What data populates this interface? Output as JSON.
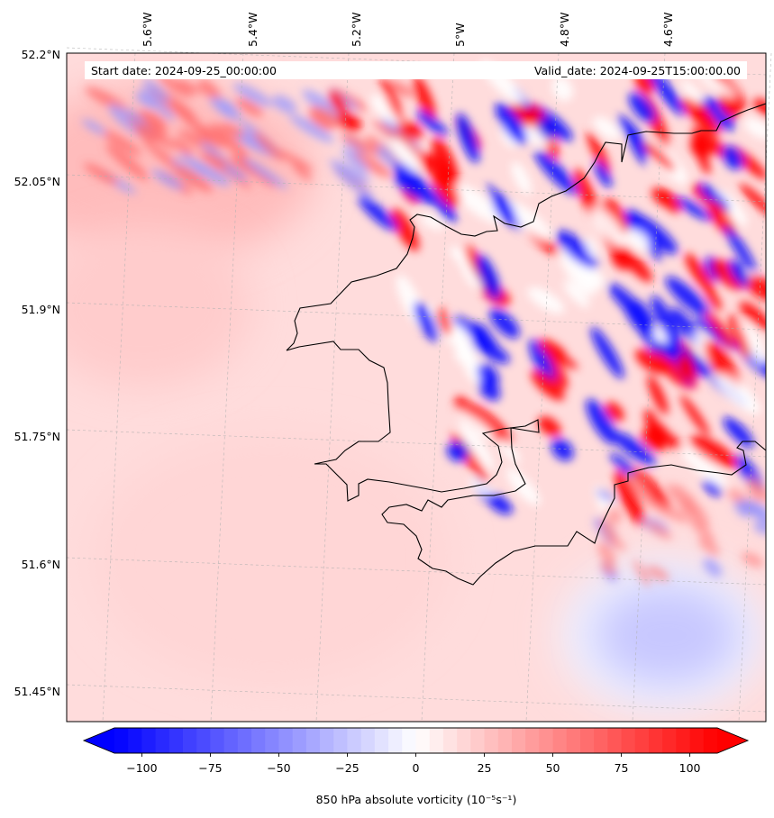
{
  "map": {
    "projection": "regional lat-lon, slightly rotated",
    "region": "South-west Wales / Pembrokeshire",
    "start_date": "Start date: 2024-09-25_00:00:00",
    "valid_date": "Valid_date: 2024-09-25T15:00:00.00",
    "lon_labels": [
      "5.6°W",
      "5.4°W",
      "5.2°W",
      "5°W",
      "4.8°W",
      "4.6°W"
    ],
    "lat_labels": [
      "52.2°N",
      "52.05°N",
      "51.9°N",
      "51.75°N",
      "51.6°N",
      "51.45°N"
    ],
    "gridlines": "dashed light grey",
    "coastline_color": "#000000",
    "field": "850 hPa absolute vorticity",
    "colormap": "bwr",
    "colormap_low": "#0000ff",
    "colormap_mid": "#ffffff",
    "colormap_high": "#ff0000"
  },
  "colorbar": {
    "label": "850 hPa absolute vorticity (10⁻⁵s⁻¹)",
    "min": -110,
    "max": 110,
    "levels": 44,
    "extend": "both",
    "ticks": [
      -100,
      -75,
      -50,
      -25,
      0,
      25,
      50,
      75,
      100
    ],
    "tick_labels": [
      "−100",
      "−75",
      "−50",
      "−25",
      "0",
      "25",
      "50",
      "75",
      "100"
    ]
  }
}
